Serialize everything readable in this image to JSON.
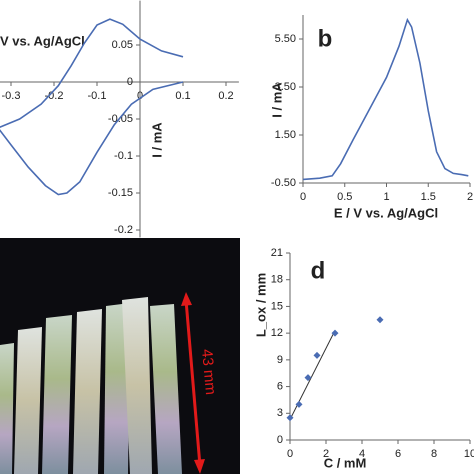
{
  "chart_data": [
    {
      "type": "line",
      "x_label": "V vs. Ag/AgCl",
      "y_label": "I / mA",
      "color": "#4a6cb3",
      "axes": "zero",
      "xlim": [
        -0.33,
        0.23
      ],
      "ylim": [
        -0.21,
        0.11
      ],
      "xticks": [
        -0.3,
        -0.2,
        -0.1,
        0,
        0.1,
        0.2
      ],
      "yticks": [
        0.05,
        0,
        -0.05,
        -0.1,
        -0.15,
        -0.2
      ],
      "x": [
        0.1,
        0.05,
        0.0,
        -0.04,
        -0.07,
        -0.1,
        -0.13,
        -0.16,
        -0.19,
        -0.23,
        -0.28,
        -0.33,
        -0.3,
        -0.26,
        -0.22,
        -0.19,
        -0.17,
        -0.14,
        -0.1,
        -0.06,
        -0.02,
        0.03,
        0.1
      ],
      "values": [
        0.034,
        0.042,
        0.058,
        0.078,
        0.085,
        0.077,
        0.052,
        0.022,
        -0.005,
        -0.03,
        -0.05,
        -0.062,
        -0.085,
        -0.115,
        -0.14,
        -0.152,
        -0.15,
        -0.135,
        -0.095,
        -0.058,
        -0.03,
        -0.01,
        0.0
      ]
    },
    {
      "type": "line",
      "panel_label": "b",
      "x_label": "E / V vs. Ag/AgCl",
      "y_label": "I / mA",
      "color": "#4a6cb3",
      "axes": "box",
      "xlim": [
        0,
        2
      ],
      "ylim": [
        -0.5,
        6.5
      ],
      "xticks": [
        0,
        0.5,
        1,
        1.5,
        2
      ],
      "yticks": [
        {
          "value": 5.5,
          "label": "5.50"
        },
        {
          "value": 3.5,
          "label": "3.50"
        },
        {
          "value": 1.5,
          "label": "1.50"
        },
        {
          "value": -0.5,
          "label": "-0.50"
        }
      ],
      "x": [
        0,
        0.2,
        0.35,
        0.45,
        0.6,
        0.8,
        1.0,
        1.15,
        1.25,
        1.3,
        1.4,
        1.5,
        1.6,
        1.7,
        1.8,
        1.9,
        1.98
      ],
      "values": [
        -0.35,
        -0.3,
        -0.2,
        0.3,
        1.3,
        2.6,
        3.9,
        5.2,
        6.3,
        6.0,
        4.5,
        2.5,
        0.8,
        0.1,
        -0.1,
        -0.15,
        -0.2
      ]
    },
    {
      "type": "scatter",
      "panel_label": "d",
      "x_label": "C / mM",
      "y_label": "L_ox / mm",
      "color": "#4a6cb3",
      "axes": "box",
      "xlim": [
        0,
        10
      ],
      "ylim": [
        0,
        21
      ],
      "xticks": [
        0,
        2,
        4,
        6,
        8,
        10
      ],
      "yticks": [
        0,
        3,
        6,
        9,
        12,
        15,
        18,
        21
      ],
      "x": [
        0,
        0.5,
        1,
        1.5,
        2.5,
        5
      ],
      "values": [
        2.5,
        4,
        7,
        9.5,
        12,
        13.5
      ],
      "trendline": {
        "x": [
          0,
          2.5
        ],
        "values": [
          2.3,
          12.3
        ]
      }
    }
  ],
  "photo": {
    "scale_label": "43 mm"
  }
}
